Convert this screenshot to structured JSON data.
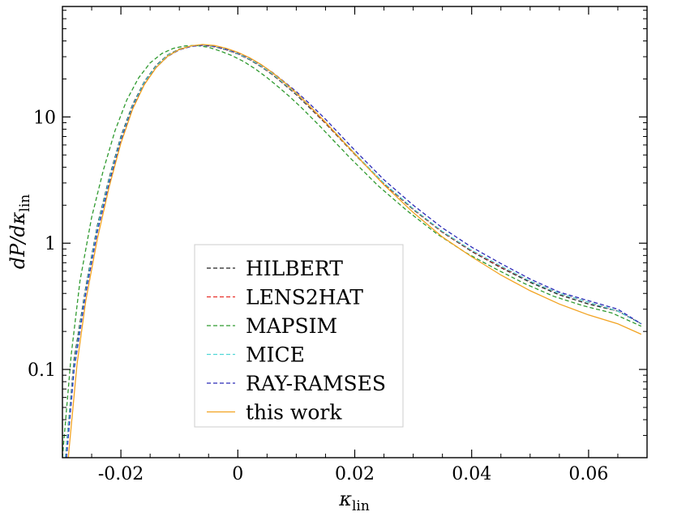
{
  "chart_data": {
    "type": "line",
    "xlabel": "κ_lin",
    "ylabel": "dP/dκ_lin",
    "yscale": "log",
    "xlim": [
      -0.03,
      0.07
    ],
    "ylim": [
      0.02,
      75
    ],
    "x_ticks": [
      -0.02,
      0,
      0.02,
      0.04,
      0.06
    ],
    "x_tick_labels": [
      "-0.02",
      "0",
      "0.02",
      "0.04",
      "0.06"
    ],
    "y_ticks": [
      0.1,
      1,
      10
    ],
    "y_tick_labels": [
      "0.1",
      "1",
      "10"
    ],
    "legend_position": "lower-left",
    "series": [
      {
        "name": "HILBERT",
        "color": "#222222",
        "style": "dashed",
        "x": [
          -0.0295,
          -0.028,
          -0.026,
          -0.024,
          -0.022,
          -0.02,
          -0.018,
          -0.016,
          -0.014,
          -0.012,
          -0.01,
          -0.008,
          -0.006,
          -0.004,
          -0.002,
          0.0,
          0.002,
          0.004,
          0.006,
          0.008,
          0.01,
          0.012,
          0.015,
          0.02,
          0.025,
          0.03,
          0.035,
          0.04,
          0.045,
          0.05,
          0.055,
          0.06,
          0.065,
          0.069
        ],
        "y": [
          0.02,
          0.12,
          0.45,
          1.4,
          3.3,
          7.0,
          12.5,
          19.0,
          25.5,
          31.0,
          34.5,
          36.5,
          37.0,
          36.0,
          34.0,
          31.5,
          28.5,
          25.0,
          21.5,
          18.0,
          15.0,
          12.2,
          8.9,
          5.05,
          2.95,
          1.85,
          1.22,
          0.86,
          0.64,
          0.49,
          0.39,
          0.33,
          0.29,
          0.23
        ]
      },
      {
        "name": "LENS2HAT",
        "color": "#e8302a",
        "style": "dashed",
        "x": [
          -0.0295,
          -0.028,
          -0.026,
          -0.024,
          -0.022,
          -0.02,
          -0.018,
          -0.016,
          -0.014,
          -0.012,
          -0.01,
          -0.008,
          -0.006,
          -0.004,
          -0.002,
          0.0,
          0.002,
          0.004,
          0.006,
          0.008,
          0.01,
          0.012,
          0.015,
          0.02,
          0.025,
          0.03,
          0.035,
          0.04,
          0.045,
          0.05,
          0.055,
          0.06,
          0.065,
          0.069
        ],
        "y": [
          0.02,
          0.11,
          0.42,
          1.3,
          3.1,
          6.7,
          12.0,
          18.5,
          25.0,
          30.5,
          34.2,
          36.3,
          36.9,
          36.0,
          34.0,
          31.6,
          28.7,
          25.2,
          21.7,
          18.2,
          15.2,
          12.4,
          9.0,
          5.1,
          2.97,
          1.87,
          1.23,
          0.87,
          0.65,
          0.5,
          0.4,
          0.34,
          0.29,
          0.23
        ]
      },
      {
        "name": "MAPSIM",
        "color": "#2f9a2f",
        "style": "dashed",
        "x": [
          -0.03,
          -0.0285,
          -0.027,
          -0.025,
          -0.023,
          -0.021,
          -0.019,
          -0.017,
          -0.015,
          -0.013,
          -0.011,
          -0.009,
          -0.007,
          -0.005,
          -0.003,
          -0.001,
          0.001,
          0.003,
          0.005,
          0.007,
          0.009,
          0.011,
          0.014,
          0.019,
          0.024,
          0.029,
          0.034,
          0.039,
          0.044,
          0.049,
          0.054,
          0.059,
          0.064,
          0.069
        ],
        "y": [
          0.02,
          0.13,
          0.5,
          1.6,
          3.8,
          7.8,
          13.6,
          20.3,
          26.8,
          31.8,
          35.0,
          36.6,
          36.8,
          35.6,
          33.3,
          30.6,
          27.5,
          24.0,
          20.5,
          17.2,
          14.3,
          11.7,
          8.5,
          4.85,
          2.85,
          1.8,
          1.19,
          0.84,
          0.63,
          0.48,
          0.38,
          0.32,
          0.28,
          0.22
        ]
      },
      {
        "name": "MICE",
        "color": "#4fd6d6",
        "style": "dashed",
        "x": [
          -0.0295,
          -0.028,
          -0.026,
          -0.024,
          -0.022,
          -0.02,
          -0.018,
          -0.016,
          -0.014,
          -0.012,
          -0.01,
          -0.008,
          -0.006,
          -0.004,
          -0.002,
          0.0,
          0.002,
          0.004,
          0.006,
          0.008,
          0.01,
          0.012,
          0.015,
          0.02,
          0.025,
          0.03,
          0.035,
          0.04,
          0.045,
          0.05,
          0.055,
          0.06,
          0.065,
          0.069
        ],
        "y": [
          0.02,
          0.11,
          0.43,
          1.35,
          3.2,
          6.8,
          12.2,
          18.8,
          25.2,
          30.8,
          34.3,
          36.4,
          37.0,
          36.1,
          34.2,
          31.7,
          28.8,
          25.3,
          21.8,
          18.3,
          15.3,
          12.5,
          9.1,
          5.15,
          3.0,
          1.88,
          1.24,
          0.88,
          0.66,
          0.5,
          0.4,
          0.34,
          0.29,
          0.23
        ]
      },
      {
        "name": "RAY-RAMSES",
        "color": "#2a2ab8",
        "style": "dashed",
        "x": [
          -0.0293,
          -0.028,
          -0.026,
          -0.024,
          -0.022,
          -0.02,
          -0.018,
          -0.016,
          -0.014,
          -0.012,
          -0.01,
          -0.008,
          -0.006,
          -0.004,
          -0.002,
          0.0,
          0.002,
          0.004,
          0.006,
          0.008,
          0.01,
          0.012,
          0.015,
          0.02,
          0.025,
          0.03,
          0.035,
          0.04,
          0.045,
          0.05,
          0.055,
          0.06,
          0.065,
          0.069
        ],
        "y": [
          0.02,
          0.1,
          0.4,
          1.25,
          3.0,
          6.5,
          11.8,
          18.2,
          24.6,
          30.2,
          34.0,
          36.2,
          37.0,
          36.3,
          34.5,
          32.1,
          29.3,
          25.9,
          22.4,
          18.9,
          15.9,
          13.1,
          9.6,
          5.45,
          3.18,
          2.0,
          1.32,
          0.93,
          0.69,
          0.52,
          0.41,
          0.35,
          0.3,
          0.23
        ]
      },
      {
        "name": "this work",
        "color": "#f2a321",
        "style": "solid",
        "x": [
          -0.029,
          -0.0275,
          -0.026,
          -0.024,
          -0.022,
          -0.02,
          -0.018,
          -0.016,
          -0.014,
          -0.012,
          -0.01,
          -0.008,
          -0.006,
          -0.004,
          -0.002,
          0.0,
          0.002,
          0.004,
          0.006,
          0.008,
          0.01,
          0.012,
          0.015,
          0.02,
          0.025,
          0.03,
          0.035,
          0.04,
          0.045,
          0.05,
          0.055,
          0.06,
          0.065,
          0.069
        ],
        "y": [
          0.02,
          0.11,
          0.35,
          1.1,
          2.8,
          6.2,
          11.5,
          18.0,
          24.5,
          30.3,
          34.2,
          36.6,
          37.5,
          36.8,
          35.0,
          32.5,
          29.5,
          26.0,
          22.3,
          18.7,
          15.5,
          12.6,
          9.1,
          5.1,
          2.9,
          1.75,
          1.12,
          0.78,
          0.56,
          0.42,
          0.33,
          0.27,
          0.23,
          0.19
        ]
      }
    ]
  }
}
